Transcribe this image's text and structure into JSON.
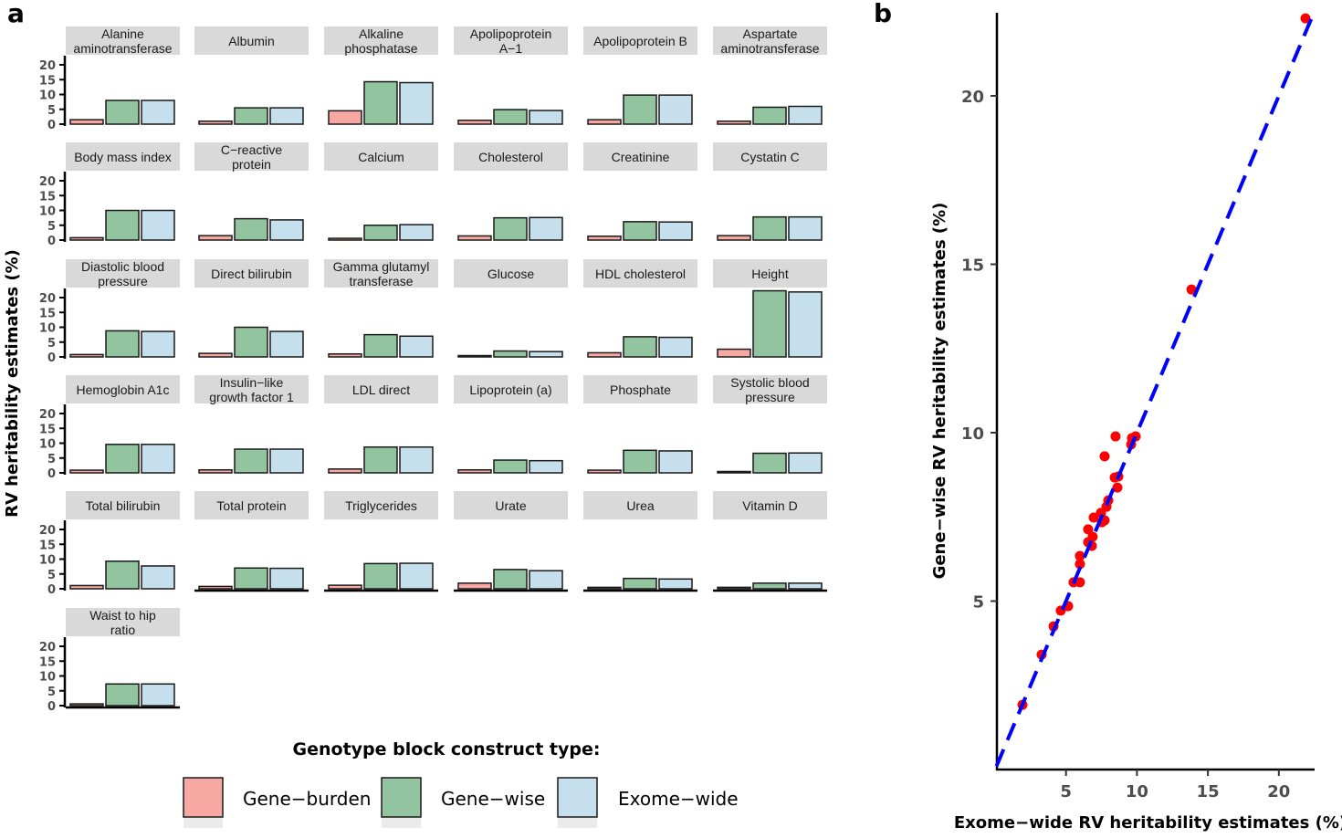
{
  "chart_data": [
    {
      "panel": "a",
      "type": "bar",
      "ylabel": "RV heritability estimates (%)",
      "yticks": [
        0,
        5,
        10,
        15,
        20
      ],
      "ylim": [
        0,
        23
      ],
      "series_names": [
        "Gene−burden",
        "Gene−wise",
        "Exome−wide"
      ],
      "colors": [
        "#f8a8a2",
        "#92c4a0",
        "#c5dfec"
      ],
      "legend": {
        "title": "Genotype block construct type:",
        "placement": "bottom"
      },
      "facets": [
        {
          "title": [
            "Alanine",
            "aminotransferase"
          ],
          "values": [
            1.5,
            8.0,
            8.0
          ]
        },
        {
          "title": [
            "Albumin"
          ],
          "values": [
            1.0,
            5.5,
            5.5
          ]
        },
        {
          "title": [
            "Alkaline",
            "phosphatase"
          ],
          "values": [
            4.5,
            14.3,
            14.0
          ]
        },
        {
          "title": [
            "Apolipoprotein",
            "A−1"
          ],
          "values": [
            1.3,
            4.9,
            4.6
          ]
        },
        {
          "title": [
            "Apolipoprotein B"
          ],
          "values": [
            1.5,
            9.8,
            9.8
          ]
        },
        {
          "title": [
            "Aspartate",
            "aminotransferase"
          ],
          "values": [
            1.0,
            5.7,
            6.0
          ]
        },
        {
          "title": [
            "Body mass index"
          ],
          "values": [
            0.8,
            10.0,
            10.0
          ]
        },
        {
          "title": [
            "C−reactive",
            "protein"
          ],
          "values": [
            1.5,
            7.2,
            6.8
          ]
        },
        {
          "title": [
            "Calcium"
          ],
          "values": [
            0.6,
            5.0,
            5.2
          ]
        },
        {
          "title": [
            "Cholesterol"
          ],
          "values": [
            1.4,
            7.5,
            7.6
          ]
        },
        {
          "title": [
            "Creatinine"
          ],
          "values": [
            1.3,
            6.2,
            6.1
          ]
        },
        {
          "title": [
            "Cystatin C"
          ],
          "values": [
            1.5,
            7.8,
            7.8
          ]
        },
        {
          "title": [
            "Diastolic blood",
            "pressure"
          ],
          "values": [
            0.8,
            8.8,
            8.6
          ]
        },
        {
          "title": [
            "Direct bilirubin"
          ],
          "values": [
            1.2,
            10.0,
            8.6
          ]
        },
        {
          "title": [
            "Gamma glutamyl",
            "transferase"
          ],
          "values": [
            1.0,
            7.5,
            7.0
          ]
        },
        {
          "title": [
            "Glucose"
          ],
          "values": [
            0.4,
            2.0,
            1.8
          ]
        },
        {
          "title": [
            "HDL cholesterol"
          ],
          "values": [
            1.4,
            6.8,
            6.6
          ]
        },
        {
          "title": [
            "Height"
          ],
          "values": [
            2.6,
            22.3,
            21.9
          ]
        },
        {
          "title": [
            "Hemoglobin A1c"
          ],
          "values": [
            0.9,
            9.6,
            9.6
          ]
        },
        {
          "title": [
            "Insulin−like",
            "growth factor 1"
          ],
          "values": [
            1.0,
            8.0,
            8.0
          ]
        },
        {
          "title": [
            "LDL direct"
          ],
          "values": [
            1.3,
            8.7,
            8.7
          ]
        },
        {
          "title": [
            "Lipoprotein (a)"
          ],
          "values": [
            1.0,
            4.3,
            4.1
          ]
        },
        {
          "title": [
            "Phosphate"
          ],
          "values": [
            0.9,
            7.6,
            7.4
          ]
        },
        {
          "title": [
            "Systolic blood",
            "pressure"
          ],
          "values": [
            0.4,
            6.6,
            6.7
          ]
        },
        {
          "title": [
            "Total bilirubin"
          ],
          "values": [
            1.1,
            9.3,
            7.7
          ]
        },
        {
          "title": [
            "Total protein"
          ],
          "values": [
            0.8,
            7.0,
            6.9
          ]
        },
        {
          "title": [
            "Triglycerides"
          ],
          "values": [
            1.2,
            8.5,
            8.6
          ]
        },
        {
          "title": [
            "Urate"
          ],
          "values": [
            1.9,
            6.5,
            6.1
          ]
        },
        {
          "title": [
            "Urea"
          ],
          "values": [
            0.5,
            3.5,
            3.3
          ]
        },
        {
          "title": [
            "Vitamin D"
          ],
          "values": [
            0.5,
            1.9,
            1.9
          ]
        },
        {
          "title": [
            "Waist to hip",
            "ratio"
          ],
          "values": [
            0.6,
            7.3,
            7.3
          ]
        }
      ]
    },
    {
      "panel": "b",
      "type": "scatter",
      "xlabel": "Exome−wide RV heritability estimates (%)",
      "ylabel": "Gene−wise RV heritability estimates (%)",
      "xticks": [
        5,
        10,
        15,
        20
      ],
      "yticks": [
        5,
        10,
        15,
        20
      ],
      "xlim": [
        0,
        22.5
      ],
      "ylim": [
        0,
        22.5
      ],
      "point_color": "#ff0000",
      "line": {
        "type": "identity",
        "style": "dashed",
        "color": "#0000ff"
      },
      "points": [
        [
          1.93,
          1.92
        ],
        [
          3.28,
          3.41
        ],
        [
          4.12,
          4.25
        ],
        [
          4.63,
          4.72
        ],
        [
          5.15,
          4.85
        ],
        [
          5.53,
          5.56
        ],
        [
          5.98,
          5.56
        ],
        [
          5.98,
          6.1
        ],
        [
          5.98,
          6.34
        ],
        [
          6.56,
          6.75
        ],
        [
          6.82,
          6.64
        ],
        [
          6.56,
          7.13
        ],
        [
          6.88,
          6.91
        ],
        [
          6.95,
          7.48
        ],
        [
          7.46,
          7.62
        ],
        [
          7.53,
          7.34
        ],
        [
          7.72,
          7.4
        ],
        [
          7.85,
          7.8
        ],
        [
          7.98,
          7.99
        ],
        [
          8.62,
          8.37
        ],
        [
          8.69,
          8.7
        ],
        [
          8.43,
          8.67
        ],
        [
          7.72,
          9.3
        ],
        [
          8.49,
          9.89
        ],
        [
          9.59,
          9.65
        ],
        [
          9.65,
          9.84
        ],
        [
          9.91,
          9.89
        ],
        [
          13.84,
          14.25
        ],
        [
          21.88,
          22.3
        ]
      ]
    }
  ],
  "labels": {
    "panel_a": "a",
    "panel_b": "b"
  }
}
